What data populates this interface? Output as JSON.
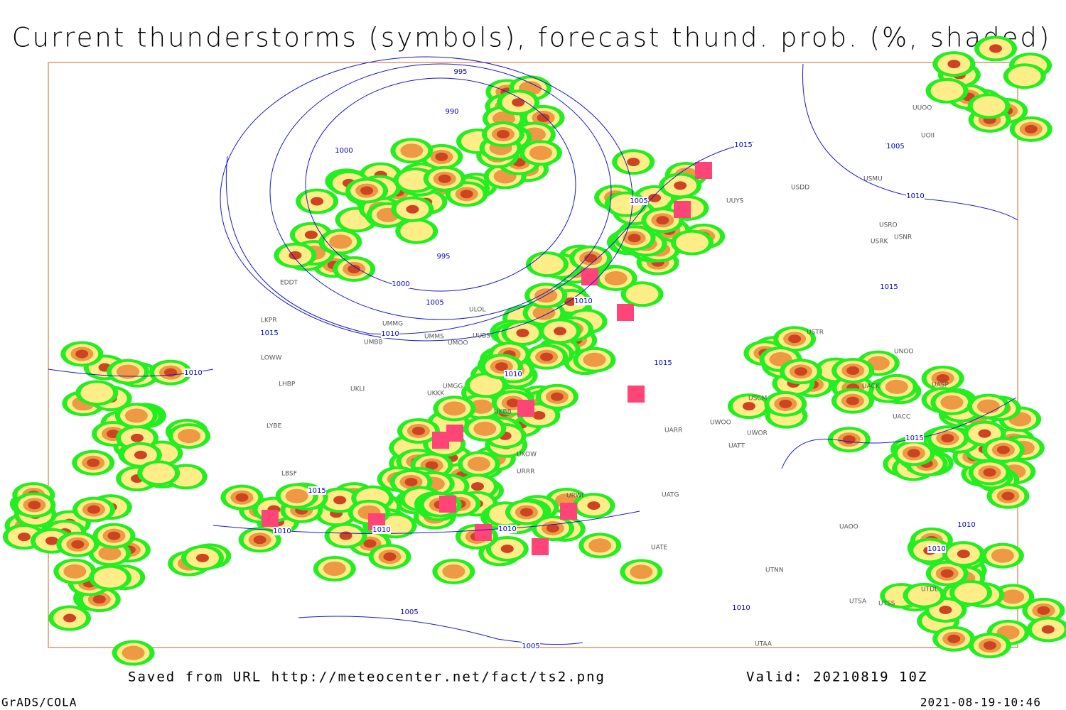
{
  "title": "Current thunderstorms (symbols), forecast thund. prob. (%, shaded)",
  "saved_from": "Saved from URL http://meteocenter.net/fact/ts2.png",
  "valid": "Valid: 20210819 10Z",
  "software": "GrADS/COLA",
  "timestamp": "2021-08-19-10:46",
  "isobar_labels": [
    "995",
    "990",
    "1000",
    "995",
    "1000",
    "1005",
    "1010",
    "1015",
    "1005",
    "1010",
    "1015",
    "1015",
    "1010",
    "1015",
    "1010",
    "1010",
    "1015",
    "1005",
    "1015",
    "1010",
    "1010",
    "1005",
    "1010",
    "1005",
    "1010",
    "1010",
    "1010",
    "1005"
  ],
  "stations": [
    "UUYS",
    "USDD",
    "USMU",
    "USRO",
    "USRK",
    "USNR",
    "UUOO",
    "UOII",
    "USTR",
    "UNOO",
    "UACK",
    "UASP",
    "UACC",
    "UAOO",
    "UTNN",
    "UTAA",
    "UATG",
    "UATE",
    "UWOO",
    "UWOR",
    "UATT",
    "USCM",
    "UKOW",
    "URRR",
    "UKBB",
    "UMGG",
    "UMBB",
    "UMMG",
    "UMOO",
    "UMMS",
    "UUBS",
    "ULOL",
    "LOWW",
    "LHBP",
    "LYBE",
    "LBSF",
    "LKPR",
    "EDDT",
    "UKLI",
    "UKKK",
    "UARR",
    "URWI",
    "UTDL",
    "UTSA",
    "UTSS"
  ]
}
